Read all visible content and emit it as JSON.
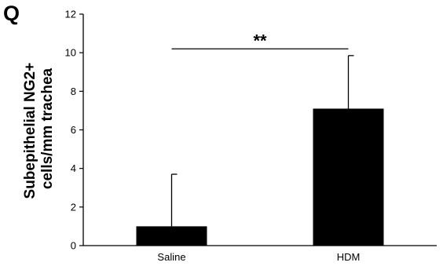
{
  "panel_label": "Q",
  "chart_data": {
    "type": "bar",
    "categories": [
      "Saline",
      "HDM"
    ],
    "values": [
      1.0,
      7.1
    ],
    "error_upper": [
      2.7,
      2.75
    ],
    "ylabel_lines": [
      "Subepithelial NG2+",
      "cells/mm trachea"
    ],
    "ylim": [
      0,
      12
    ],
    "yticks": [
      0,
      2,
      4,
      6,
      8,
      10,
      12
    ],
    "significance": {
      "label": "**",
      "between": [
        "Saline",
        "HDM"
      ],
      "y": 10.2
    },
    "bar_color": "#000000",
    "grid": false,
    "legend": "none"
  }
}
